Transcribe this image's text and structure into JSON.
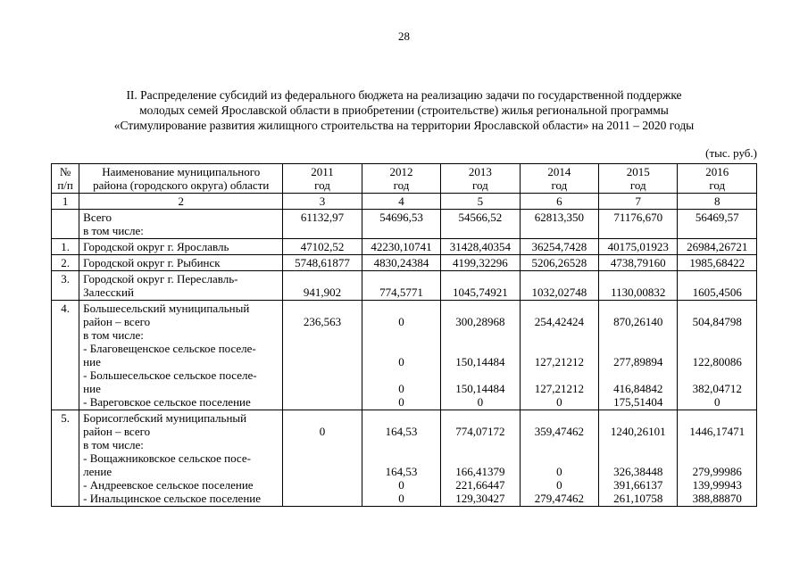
{
  "page_number": "28",
  "title_lines": [
    "II. Распределение субсидий из федерального бюджета на реализацию задачи по государственной поддержке",
    "молодых семей Ярославской области в приобретении (строительстве) жилья региональной программы",
    "«Стимулирование развития жилищного строительства на территории Ярославской области» на 2011 – 2020 годы"
  ],
  "units_label": "(тыс. руб.)",
  "table": {
    "header": {
      "num": [
        "№",
        "п/п"
      ],
      "name": [
        "Наименование муниципального",
        "района (городского округа) области"
      ],
      "years": [
        "2011",
        "2012",
        "2013",
        "2014",
        "2015",
        "2016"
      ],
      "year_unit": "год"
    },
    "col_numbers": [
      "1",
      "2",
      "3",
      "4",
      "5",
      "6",
      "7",
      "8"
    ],
    "rows": [
      {
        "num": "",
        "lines": [
          {
            "text": "Всего",
            "values": [
              "61132,97",
              "54696,53",
              "54566,52",
              "62813,350",
              "71176,670",
              "56469,57"
            ]
          },
          {
            "text": "в том числе:"
          }
        ]
      },
      {
        "num": "1.",
        "lines": [
          {
            "text": "Городской округ г. Ярославль",
            "values": [
              "47102,52",
              "42230,10741",
              "31428,40354",
              "36254,7428",
              "40175,01923",
              "26984,26721"
            ]
          }
        ]
      },
      {
        "num": "2.",
        "lines": [
          {
            "text": "Городской округ г. Рыбинск",
            "values": [
              "5748,61877",
              "4830,24384",
              "4199,32296",
              "5206,26528",
              "4738,79160",
              "1985,68422"
            ]
          }
        ]
      },
      {
        "num": "3.",
        "lines": [
          {
            "text": "Городской округ г. Переславль-"
          },
          {
            "text": "Залесский",
            "values": [
              "941,902",
              "774,5771",
              "1045,74921",
              "1032,02748",
              "1130,00832",
              "1605,4506"
            ]
          }
        ]
      },
      {
        "num": "4.",
        "lines": [
          {
            "text": "Большесельский муниципальный"
          },
          {
            "text": "район – всего",
            "values": [
              "236,563",
              "0",
              "300,28968",
              "254,42424",
              "870,26140",
              "504,84798"
            ]
          },
          {
            "text": "в том числе:"
          },
          {
            "text": "- Благовещенское сельское поселе-"
          },
          {
            "text": "ние",
            "values": [
              "",
              "0",
              "150,14484",
              "127,21212",
              "277,89894",
              "122,80086"
            ]
          },
          {
            "text": "- Большесельское сельское поселе-"
          },
          {
            "text": "ние",
            "values": [
              "",
              "0",
              "150,14484",
              "127,21212",
              "416,84842",
              "382,04712"
            ]
          },
          {
            "text": "- Вареговское сельское поселение",
            "values": [
              "",
              "0",
              "0",
              "0",
              "175,51404",
              "0"
            ]
          }
        ]
      },
      {
        "num": "5.",
        "lines": [
          {
            "text": "Борисоглебский муниципальный"
          },
          {
            "text": "район – всего",
            "values": [
              "0",
              "164,53",
              "774,07172",
              "359,47462",
              "1240,26101",
              "1446,17471"
            ]
          },
          {
            "text": "в том числе:"
          },
          {
            "text": "- Вощажниковское сельское посе-"
          },
          {
            "text": "ление",
            "values": [
              "",
              "164,53",
              "166,41379",
              "0",
              "326,38448",
              "279,99986"
            ]
          },
          {
            "text": "- Андреевское сельское поселение",
            "values": [
              "",
              "0",
              "221,66447",
              "0",
              "391,66137",
              "139,99943"
            ]
          },
          {
            "text": "- Инальцинское сельское поселение",
            "values": [
              "",
              "0",
              "129,30427",
              "279,47462",
              "261,10758",
              "388,88870"
            ]
          }
        ]
      }
    ]
  }
}
